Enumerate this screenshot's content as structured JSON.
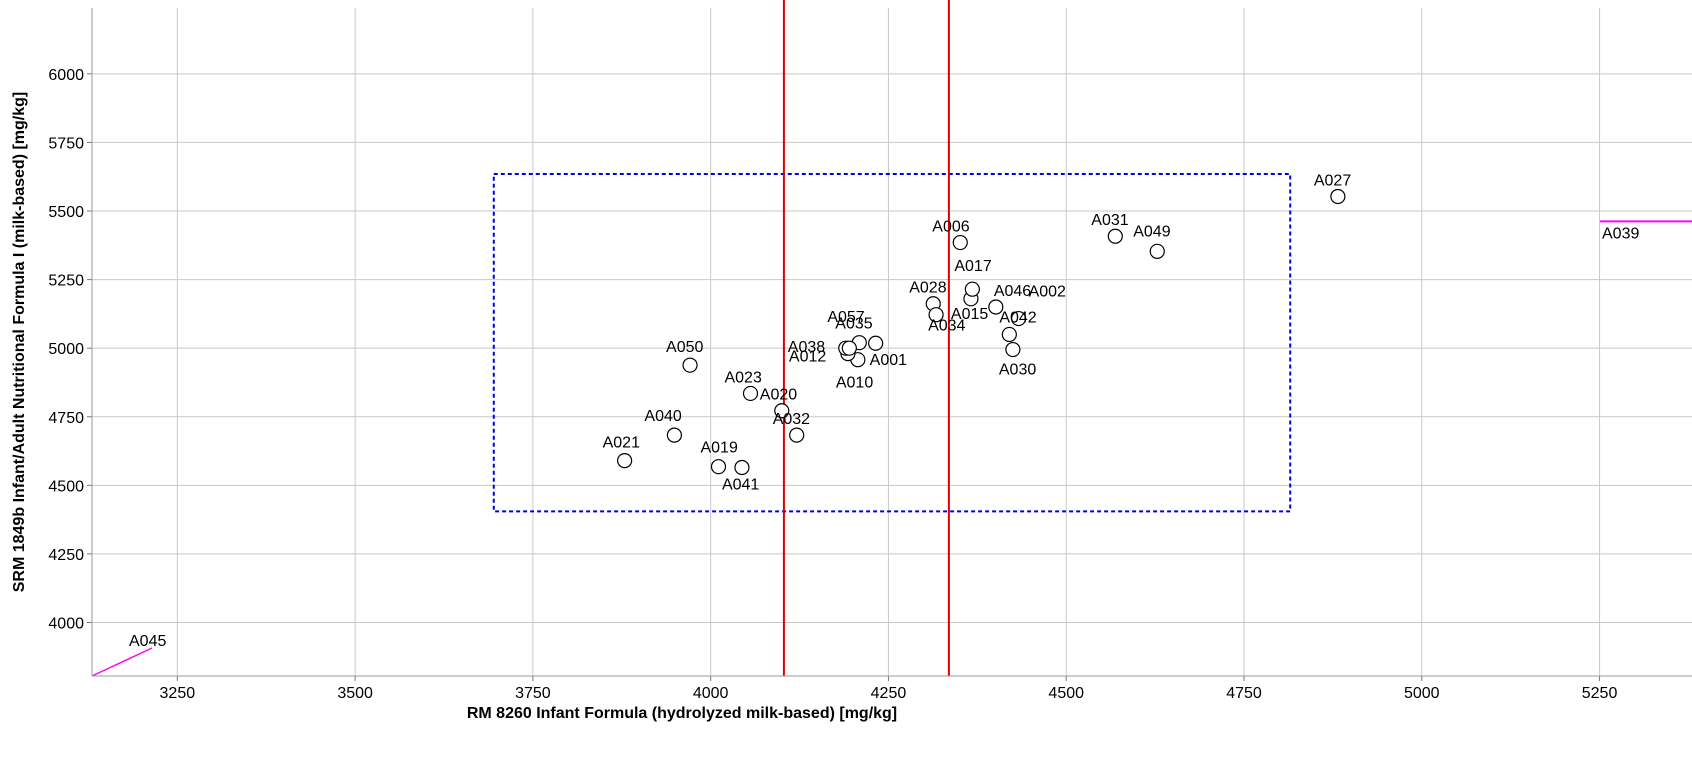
{
  "chart_data": {
    "type": "scatter",
    "title": "",
    "xlabel": "RM 8260 Infant Formula (hydrolyzed milk-based) [mg/kg]",
    "ylabel": "SRM 1849b Infant/Adult Nutritional Formula I (milk-based) [mg/kg]",
    "xlim": [
      3130,
      5380
    ],
    "ylim": [
      3805,
      6240
    ],
    "xticks": [
      3250,
      3500,
      3750,
      4000,
      4250,
      4500,
      4750,
      5000,
      5250
    ],
    "yticks": [
      4000,
      4250,
      4500,
      4750,
      5000,
      5250,
      5500,
      5750,
      6000
    ],
    "grid": true,
    "colors": {
      "grid": "#c8c8c8",
      "marker": "#000000",
      "consensus_lines": "#e00000",
      "consensus_box": "#0000e0",
      "offscale": "#ff00ff"
    },
    "consensus_lines_x": [
      4103,
      4335
    ],
    "consensus_box": {
      "x": [
        3695,
        4815
      ],
      "y": [
        4405,
        5635
      ]
    },
    "points": [
      {
        "label": "A001",
        "x": 4232,
        "y": 5018
      },
      {
        "label": "A002",
        "x": 4433,
        "y": 5108
      },
      {
        "label": "A006",
        "x": 4351,
        "y": 5385
      },
      {
        "label": "A010",
        "x": 4207,
        "y": 4958
      },
      {
        "label": "A012",
        "x": 4193,
        "y": 4980
      },
      {
        "label": "A015",
        "x": 4366,
        "y": 5180
      },
      {
        "label": "A017",
        "x": 4368,
        "y": 5215
      },
      {
        "label": "A019",
        "x": 4011,
        "y": 4568
      },
      {
        "label": "A020",
        "x": 4100,
        "y": 4772
      },
      {
        "label": "A021",
        "x": 3879,
        "y": 4590
      },
      {
        "label": "A023",
        "x": 4056,
        "y": 4835
      },
      {
        "label": "A027",
        "x": 4882,
        "y": 5553
      },
      {
        "label": "A028",
        "x": 4313,
        "y": 5162
      },
      {
        "label": "A030",
        "x": 4425,
        "y": 4995
      },
      {
        "label": "A031",
        "x": 4569,
        "y": 5408
      },
      {
        "label": "A032",
        "x": 4121,
        "y": 4683
      },
      {
        "label": "A034",
        "x": 4317,
        "y": 5122
      },
      {
        "label": "A035",
        "x": 4209,
        "y": 5020
      },
      {
        "label": "A038",
        "x": 4190,
        "y": 5000
      },
      {
        "label": "A040",
        "x": 3949,
        "y": 4683
      },
      {
        "label": "A041",
        "x": 4044,
        "y": 4565
      },
      {
        "label": "A042",
        "x": 4420,
        "y": 5050
      },
      {
        "label": "A046",
        "x": 4401,
        "y": 5150
      },
      {
        "label": "A049",
        "x": 4628,
        "y": 5353
      },
      {
        "label": "A050",
        "x": 3971,
        "y": 4938
      },
      {
        "label": "A057",
        "x": 4195,
        "y": 5000
      }
    ],
    "offscale_points": [
      {
        "label": "A039",
        "direction": "right",
        "y": 5462
      },
      {
        "label": "A045",
        "direction": "lower-left",
        "x": 3130,
        "y": 3805
      }
    ]
  }
}
